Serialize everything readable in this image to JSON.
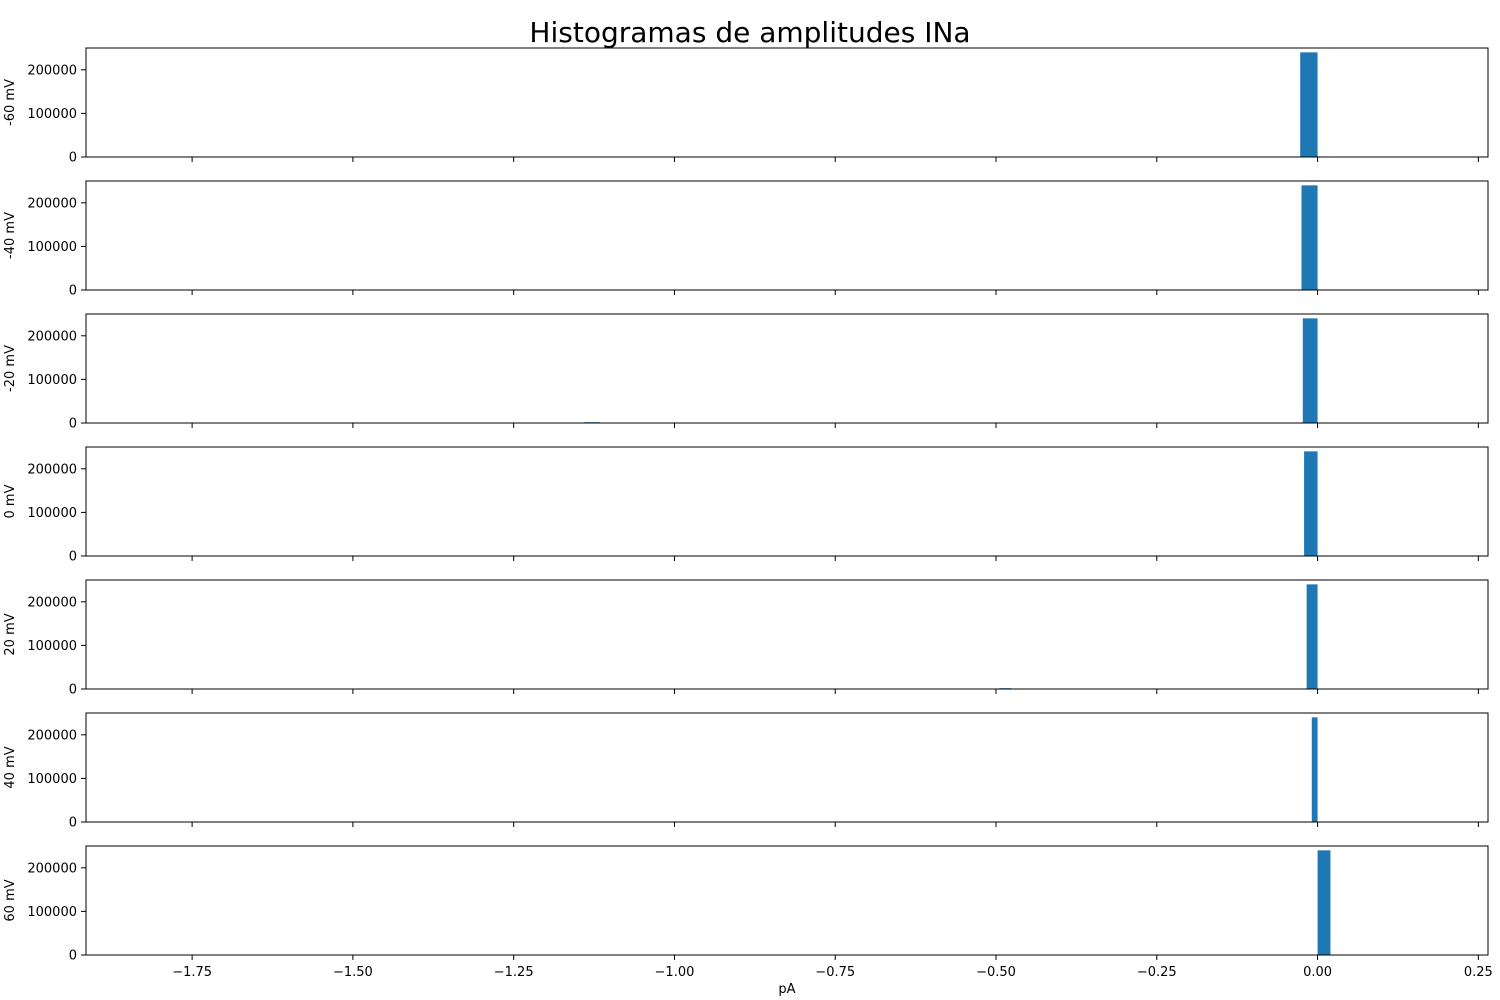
{
  "figure": {
    "title": "Histogramas de amplitudes INa",
    "xlabel": "pA"
  },
  "chart_data": {
    "type": "bar",
    "title": "Histogramas de amplitudes INa",
    "xlabel": "pA",
    "shared_x": true,
    "xlim": [
      -1.915,
      0.265
    ],
    "xticks": [
      -1.75,
      -1.5,
      -1.25,
      -1.0,
      -0.75,
      -0.5,
      -0.25,
      0.0,
      0.25
    ],
    "xtick_labels": [
      "−1.75",
      "−1.50",
      "−1.25",
      "−1.00",
      "−0.75",
      "−0.50",
      "−0.25",
      "0.00",
      "0.25"
    ],
    "ylim": [
      0,
      250000
    ],
    "yticks": [
      0,
      100000,
      200000
    ],
    "ytick_labels": [
      "0",
      "100000",
      "200000"
    ],
    "bar_color": "#1f77b4",
    "grid": false,
    "panels": [
      {
        "ylabel": "-60 mV",
        "bars": [
          {
            "x0": -0.027,
            "x1": 0.0,
            "count": 240000
          }
        ]
      },
      {
        "ylabel": "-40 mV",
        "bars": [
          {
            "x0": -0.025,
            "x1": 0.0,
            "count": 240000
          }
        ]
      },
      {
        "ylabel": "-20 mV",
        "bars": [
          {
            "x0": -1.14,
            "x1": -1.116,
            "count": 1000
          },
          {
            "x0": -0.023,
            "x1": 0.0,
            "count": 240000
          }
        ]
      },
      {
        "ylabel": "0 mV",
        "bars": [
          {
            "x0": -0.021,
            "x1": 0.0,
            "count": 240000
          }
        ]
      },
      {
        "ylabel": "20 mV",
        "bars": [
          {
            "x0": -0.495,
            "x1": -0.476,
            "count": 1000
          },
          {
            "x0": -0.017,
            "x1": 0.0,
            "count": 240000
          }
        ]
      },
      {
        "ylabel": "40 mV",
        "bars": [
          {
            "x0": -0.009,
            "x1": 0.0,
            "count": 240000
          }
        ]
      },
      {
        "ylabel": "60 mV",
        "bars": [
          {
            "x0": 0.0,
            "x1": 0.02,
            "count": 240000
          }
        ]
      }
    ]
  }
}
